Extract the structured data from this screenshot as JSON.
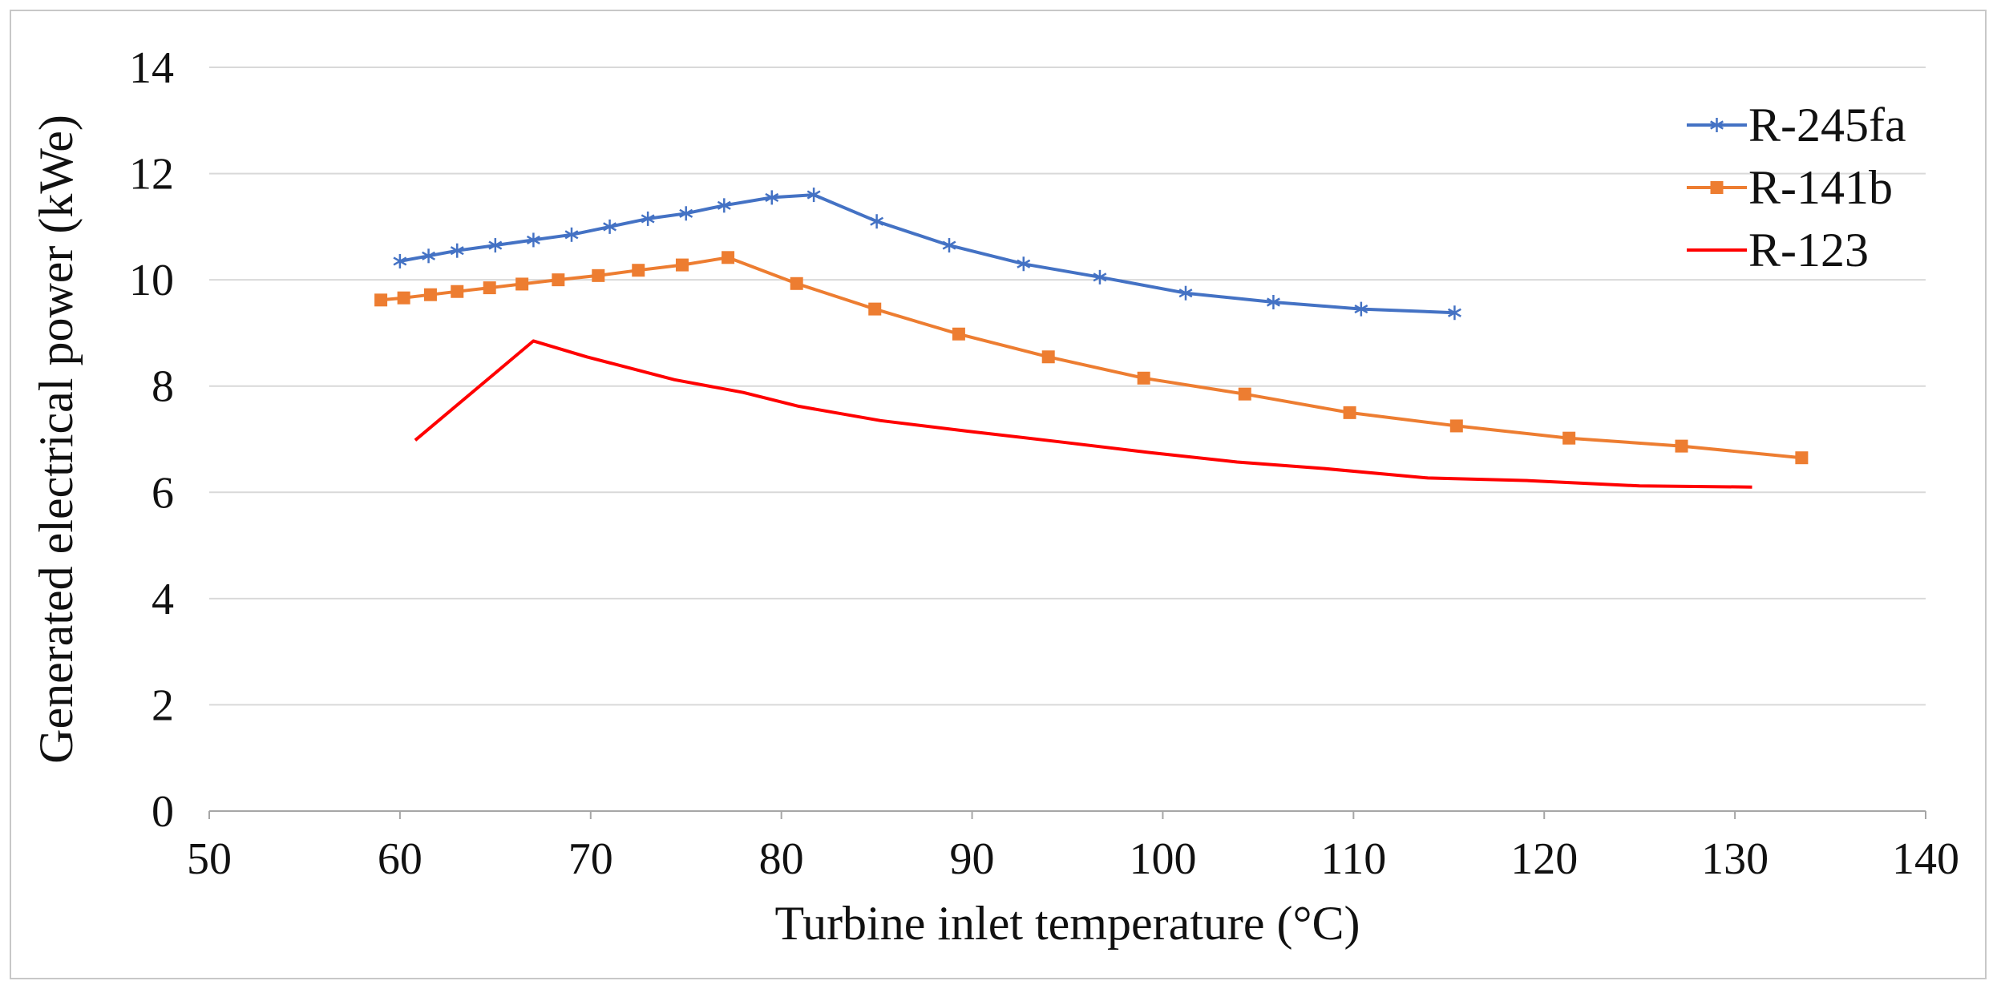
{
  "chart_data": {
    "type": "line",
    "title": "",
    "xlabel": "Turbine inlet temperature (°C)",
    "ylabel": "Generated electrical power (kWe)",
    "xlim": [
      50,
      140
    ],
    "ylim": [
      0,
      14
    ],
    "xticks": [
      "50",
      "60",
      "70",
      "80",
      "90",
      "100",
      "110",
      "120",
      "130",
      "140"
    ],
    "yticks": [
      "0",
      "2",
      "4",
      "6",
      "8",
      "10",
      "12",
      "14"
    ],
    "grid": "horizontal",
    "legend_position": "top-right",
    "series": [
      {
        "name": "R-245fa",
        "color": "#4472c4",
        "marker": "asterisk",
        "x": [
          60.0,
          61.5,
          63.0,
          65.0,
          67.0,
          69.0,
          71.0,
          73.0,
          75.0,
          77.0,
          79.5,
          81.7,
          85.0,
          88.8,
          92.7,
          96.7,
          101.2,
          105.8,
          110.4,
          115.3
        ],
        "y": [
          10.35,
          10.45,
          10.55,
          10.65,
          10.75,
          10.85,
          11.0,
          11.15,
          11.25,
          11.4,
          11.55,
          11.6,
          11.1,
          10.65,
          10.3,
          10.05,
          9.75,
          9.58,
          9.45,
          9.38
        ]
      },
      {
        "name": "R-141b",
        "color": "#ed7d31",
        "marker": "square",
        "x": [
          59.0,
          60.2,
          61.6,
          63.0,
          64.7,
          66.4,
          68.3,
          70.4,
          72.5,
          74.8,
          77.2,
          80.8,
          84.9,
          89.3,
          94.0,
          99.0,
          104.3,
          109.8,
          115.4,
          121.3,
          127.2,
          133.5
        ],
        "y": [
          9.62,
          9.66,
          9.72,
          9.78,
          9.85,
          9.92,
          10.0,
          10.08,
          10.18,
          10.28,
          10.42,
          9.93,
          9.45,
          8.98,
          8.55,
          8.15,
          7.85,
          7.5,
          7.25,
          7.02,
          6.87,
          6.65
        ]
      },
      {
        "name": "R-123",
        "color": "#ff0000",
        "marker": "none",
        "x": [
          60.8,
          67.0,
          69.8,
          74.4,
          78.0,
          80.9,
          85.2,
          89.8,
          94.6,
          99.3,
          103.9,
          108.4,
          113.9,
          119.2,
          125.0,
          130.9
        ],
        "y": [
          6.98,
          8.85,
          8.55,
          8.12,
          7.88,
          7.62,
          7.35,
          7.15,
          6.95,
          6.75,
          6.57,
          6.45,
          6.27,
          6.22,
          6.12,
          6.1
        ]
      }
    ]
  }
}
